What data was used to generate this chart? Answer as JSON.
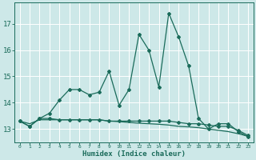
{
  "title": "",
  "xlabel": "Humidex (Indice chaleur)",
  "ylabel": "",
  "bg_color": "#cde8e8",
  "line_color": "#1a6b5a",
  "grid_color": "#ffffff",
  "x": [
    0,
    1,
    2,
    3,
    4,
    5,
    6,
    7,
    8,
    9,
    10,
    11,
    12,
    13,
    14,
    15,
    16,
    17,
    18,
    19,
    20,
    21,
    22,
    23
  ],
  "y_main": [
    13.3,
    13.1,
    13.4,
    13.6,
    14.1,
    14.5,
    14.5,
    14.3,
    14.4,
    15.2,
    13.9,
    14.5,
    16.6,
    16.0,
    14.6,
    17.4,
    16.5,
    15.4,
    13.4,
    13.0,
    13.2,
    13.2,
    12.9,
    12.7
  ],
  "y_flat1": [
    13.3,
    13.1,
    13.4,
    13.4,
    13.35,
    13.35,
    13.35,
    13.35,
    13.35,
    13.3,
    13.3,
    13.3,
    13.3,
    13.3,
    13.3,
    13.3,
    13.25,
    13.2,
    13.2,
    13.15,
    13.1,
    13.1,
    12.95,
    12.75
  ],
  "y_flat2": [
    13.3,
    13.2,
    13.35,
    13.35,
    13.35,
    13.35,
    13.35,
    13.35,
    13.35,
    13.3,
    13.28,
    13.25,
    13.22,
    13.2,
    13.18,
    13.15,
    13.1,
    13.08,
    13.05,
    13.0,
    12.95,
    12.9,
    12.82,
    12.72
  ],
  "yticks": [
    13,
    14,
    15,
    16,
    17
  ],
  "ylim": [
    12.5,
    17.8
  ],
  "xlim": [
    -0.5,
    23.5
  ],
  "xtick_labels": [
    "0",
    "1",
    "2",
    "3",
    "4",
    "5",
    "6",
    "7",
    "8",
    "9",
    "10",
    "11",
    "12",
    "13",
    "14",
    "15",
    "16",
    "17",
    "18",
    "19",
    "20",
    "21",
    "22",
    "23"
  ],
  "marker": "D",
  "markersize": 2.0,
  "linewidth": 0.9
}
